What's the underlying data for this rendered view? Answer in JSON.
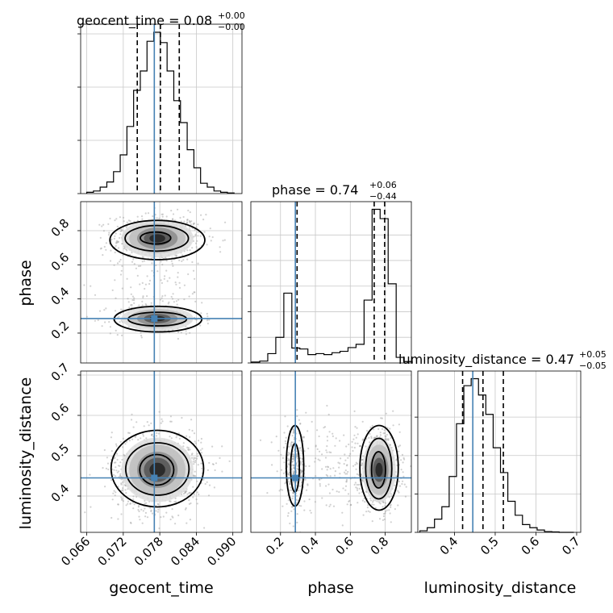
{
  "chart_data": {
    "type": "corner",
    "params": [
      "geocent_time",
      "phase",
      "luminosity_distance"
    ],
    "truths": {
      "geocent_time": 0.0771,
      "phase": 0.285,
      "luminosity_distance": 0.445
    },
    "titles": {
      "geocent_time": {
        "label": "geocent_time = 0.08",
        "plus": "+0.00",
        "minus": "−0.00"
      },
      "phase": {
        "label": "phase = 0.74",
        "plus": "+0.06",
        "minus": "−0.44"
      },
      "luminosity_distance": {
        "label": "luminosity_distance = 0.47",
        "plus": "+0.05",
        "minus": "−0.05"
      }
    },
    "axes": {
      "geocent_time": {
        "xlim": [
          0.065,
          0.0915
        ],
        "ticks": [
          0.066,
          0.072,
          0.078,
          0.084,
          0.09
        ],
        "tick_labels": [
          "0.066",
          "0.072",
          "0.078",
          "0.084",
          "0.090"
        ]
      },
      "phase": {
        "xlim": [
          0.03,
          0.95
        ],
        "ticks": [
          0.2,
          0.4,
          0.6,
          0.8
        ],
        "tick_labels": [
          "0.2",
          "0.4",
          "0.6",
          "0.8"
        ]
      },
      "luminosity_distance": {
        "xlim": [
          0.31,
          0.71
        ],
        "ticks": [
          0.4,
          0.5,
          0.6,
          0.7
        ],
        "tick_labels": [
          "0.4",
          "0.5",
          "0.6",
          "0.7"
        ],
        "y_ticks": [
          0.4,
          0.5,
          0.6,
          0.7
        ],
        "y_tick_labels": [
          "0.4",
          "0.5",
          "0.6",
          "0.7"
        ]
      }
    },
    "phase_y_ticks": [
      0.2,
      0.4,
      0.6,
      0.8
    ],
    "phase_y_tick_labels": [
      "0.2",
      "0.4",
      "0.6",
      "0.8"
    ],
    "quantiles": {
      "geocent_time": [
        0.0743,
        0.0781,
        0.0812
      ],
      "phase": [
        0.295,
        0.737,
        0.797
      ],
      "luminosity_distance": [
        0.42,
        0.47,
        0.52
      ]
    },
    "histograms": {
      "geocent_time": {
        "edges": [
          0.066,
          0.0671,
          0.0682,
          0.0693,
          0.0704,
          0.0715,
          0.0726,
          0.0737,
          0.0748,
          0.0759,
          0.077,
          0.0781,
          0.0792,
          0.0803,
          0.0814,
          0.0825,
          0.0836,
          0.0847,
          0.0858,
          0.0869,
          0.088,
          0.0891,
          0.0902
        ],
        "counts": [
          1,
          2,
          5,
          9,
          17,
          30,
          52,
          80,
          95,
          118,
          125,
          117,
          95,
          72,
          55,
          34,
          20,
          8,
          5,
          2,
          1,
          0.5
        ]
      },
      "phase": {
        "edges": [
          0.035,
          0.081,
          0.127,
          0.173,
          0.219,
          0.265,
          0.311,
          0.357,
          0.403,
          0.449,
          0.495,
          0.541,
          0.587,
          0.633,
          0.679,
          0.725,
          0.771,
          0.817,
          0.863,
          0.909,
          0.955
        ],
        "counts": [
          2,
          4,
          20,
          55,
          150,
          32,
          30,
          18,
          20,
          18,
          22,
          25,
          33,
          40,
          135,
          330,
          310,
          170,
          12,
          3
        ]
      },
      "luminosity_distance": {
        "edges": [
          0.315,
          0.333,
          0.351,
          0.369,
          0.387,
          0.405,
          0.423,
          0.441,
          0.459,
          0.477,
          0.495,
          0.513,
          0.531,
          0.549,
          0.567,
          0.585,
          0.603,
          0.621,
          0.639,
          0.657,
          0.675,
          0.693
        ],
        "counts": [
          2,
          6,
          17,
          33,
          72,
          140,
          189,
          198,
          177,
          152,
          109,
          77,
          40,
          22,
          10,
          6,
          3,
          1,
          0.5,
          0,
          0
        ]
      }
    }
  }
}
